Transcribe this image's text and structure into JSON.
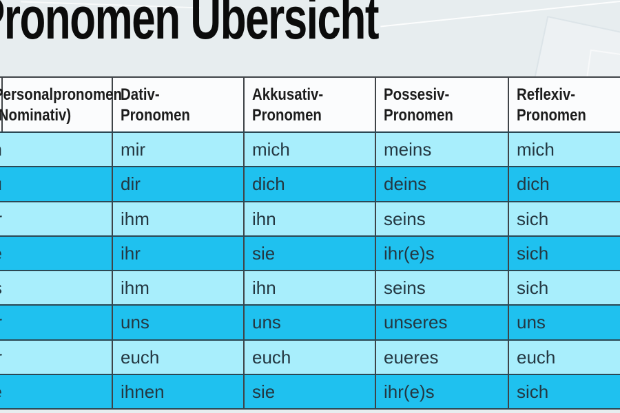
{
  "title": "Pronomen Übersicht",
  "table": {
    "columns": [
      {
        "label": "Personalpronomen\n(Nominativ)"
      },
      {
        "label": "Dativ-\nPronomen"
      },
      {
        "label": "Akkusativ-\nPronomen"
      },
      {
        "label": "Possesiv-\nPronomen"
      },
      {
        "label": "Reflexiv-\nPronomen"
      }
    ],
    "rows": [
      {
        "personal": "ich",
        "dativ": "mir",
        "akkusativ": "mich",
        "possesiv": "meins",
        "reflexiv": "mich"
      },
      {
        "personal": "du",
        "dativ": "dir",
        "akkusativ": "dich",
        "possesiv": "deins",
        "reflexiv": "dich"
      },
      {
        "personal": "er",
        "dativ": "ihm",
        "akkusativ": "ihn",
        "possesiv": "seins",
        "reflexiv": "sich"
      },
      {
        "personal": "sie",
        "dativ": "ihr",
        "akkusativ": "sie",
        "possesiv": "ihr(e)s",
        "reflexiv": "sich"
      },
      {
        "personal": "es",
        "dativ": "ihm",
        "akkusativ": "ihn",
        "possesiv": "seins",
        "reflexiv": "sich"
      },
      {
        "personal": "wir",
        "dativ": "uns",
        "akkusativ": "uns",
        "possesiv": "unseres",
        "reflexiv": "uns"
      },
      {
        "personal": "ihr",
        "dativ": "euch",
        "akkusativ": "euch",
        "possesiv": "eueres",
        "reflexiv": "euch"
      },
      {
        "personal": "sie",
        "dativ": "ihnen",
        "akkusativ": "sie",
        "possesiv": "ihr(e)s",
        "reflexiv": "sich"
      }
    ],
    "colors": {
      "row_light": "#a8eefc",
      "row_dark": "#1fc1ef",
      "header_bg": "#fbfcfd",
      "border": "#3f4347",
      "row_separator": "#2b4854",
      "page_background": "#e7edef"
    }
  }
}
